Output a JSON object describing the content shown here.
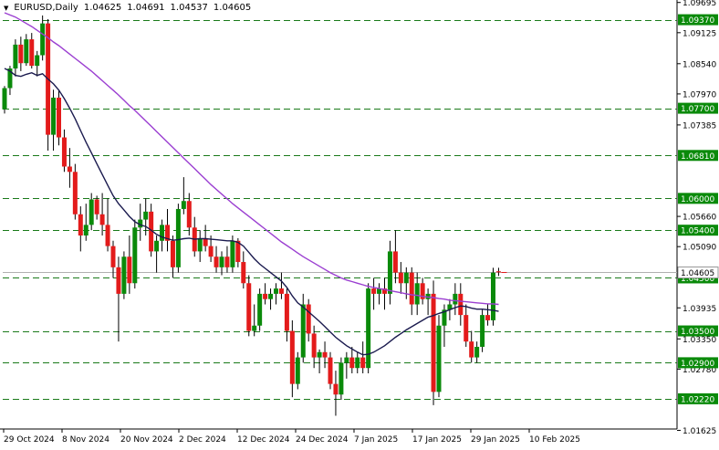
{
  "header": {
    "symbol": "EURUSD,Daily",
    "open": "1.04625",
    "high": "1.04691",
    "low": "1.04537",
    "close": "1.04605"
  },
  "colors": {
    "bull": "#0a8a0a",
    "bear": "#e31b1b",
    "wick": "#000000",
    "level_line": "#1a7a1a",
    "ma_fast": "#1a1a4e",
    "ma_slow": "#9b3fd1",
    "tag_bg": "#0a8a0a",
    "tag_text": "#ffffff",
    "axis": "#000000"
  },
  "chart_data": {
    "type": "candlestick",
    "ylim": [
      1.0165,
      1.0969
    ],
    "y_ticks": [
      "1.09695",
      "1.09370",
      "1.09125",
      "1.08540",
      "1.07970",
      "1.07700",
      "1.07385",
      "1.06810",
      "1.06000",
      "1.05660",
      "1.05400",
      "1.05090",
      "1.04605",
      "1.04500",
      "1.03935",
      "1.03500",
      "1.03350",
      "1.02900",
      "1.02780",
      "1.02220",
      "1.01625"
    ],
    "x_labels": [
      "29 Oct 2024",
      "8 Nov 2024",
      "20 Nov 2024",
      "2 Dec 2024",
      "12 Dec 2024",
      "24 Dec 2024",
      "7 Jan 2025",
      "17 Jan 2025",
      "29 Jan 2025",
      "10 Feb 2025"
    ],
    "levels": [
      {
        "value": 1.0937,
        "label": "1.09370"
      },
      {
        "value": 1.077,
        "label": "1.07700"
      },
      {
        "value": 1.0681,
        "label": "1.06810"
      },
      {
        "value": 1.06,
        "label": "1.06000"
      },
      {
        "value": 1.054,
        "label": "1.05400"
      },
      {
        "value": 1.045,
        "label": "1.04500"
      },
      {
        "value": 1.035,
        "label": "1.03500"
      },
      {
        "value": 1.029,
        "label": "1.02900"
      },
      {
        "value": 1.0222,
        "label": "1.02220"
      }
    ],
    "current_price": {
      "value": 1.04605,
      "label": "1.04605"
    },
    "candles": [
      [
        1.0768,
        1.0812,
        1.076,
        1.0808
      ],
      [
        1.0808,
        1.085,
        1.0795,
        1.0845
      ],
      [
        1.0845,
        1.09,
        1.083,
        1.089
      ],
      [
        1.089,
        1.0905,
        1.084,
        1.0855
      ],
      [
        1.0855,
        1.091,
        1.085,
        1.09
      ],
      [
        1.09,
        1.0912,
        1.0845,
        1.085
      ],
      [
        1.085,
        1.0878,
        1.083,
        1.087
      ],
      [
        1.087,
        1.0945,
        1.086,
        1.093
      ],
      [
        1.093,
        1.0938,
        1.069,
        1.072
      ],
      [
        1.072,
        1.0805,
        1.069,
        1.079
      ],
      [
        1.079,
        1.0805,
        1.07,
        1.0715
      ],
      [
        1.0715,
        1.073,
        1.065,
        1.066
      ],
      [
        1.066,
        1.0695,
        1.062,
        1.065
      ],
      [
        1.065,
        1.0665,
        1.056,
        1.057
      ],
      [
        1.057,
        1.0585,
        1.05,
        1.053
      ],
      [
        1.053,
        1.059,
        1.052,
        1.055
      ],
      [
        1.055,
        1.061,
        1.054,
        1.0598
      ],
      [
        1.0598,
        1.0605,
        1.056,
        1.057
      ],
      [
        1.057,
        1.061,
        1.053,
        1.055
      ],
      [
        1.055,
        1.06,
        1.05,
        1.051
      ],
      [
        1.051,
        1.052,
        1.045,
        1.047
      ],
      [
        1.047,
        1.049,
        1.033,
        1.042
      ],
      [
        1.042,
        1.05,
        1.041,
        1.049
      ],
      [
        1.049,
        1.053,
        1.042,
        1.044
      ],
      [
        1.044,
        1.056,
        1.043,
        1.0545
      ],
      [
        1.0545,
        1.059,
        1.052,
        1.056
      ],
      [
        1.056,
        1.06,
        1.053,
        1.0575
      ],
      [
        1.0575,
        1.059,
        1.049,
        1.05
      ],
      [
        1.05,
        1.053,
        1.046,
        1.052
      ],
      [
        1.052,
        1.056,
        1.05,
        1.055
      ],
      [
        1.055,
        1.058,
        1.05,
        1.052
      ],
      [
        1.052,
        1.053,
        1.045,
        1.047
      ],
      [
        1.047,
        1.059,
        1.046,
        1.058
      ],
      [
        1.058,
        1.064,
        1.057,
        1.0595
      ],
      [
        1.0595,
        1.061,
        1.053,
        1.0545
      ],
      [
        1.0545,
        1.0565,
        1.049,
        1.05
      ],
      [
        1.05,
        1.054,
        1.048,
        1.0525
      ],
      [
        1.0525,
        1.055,
        1.05,
        1.051
      ],
      [
        1.051,
        1.053,
        1.048,
        1.049
      ],
      [
        1.049,
        1.051,
        1.046,
        1.047
      ],
      [
        1.047,
        1.05,
        1.0455,
        1.049
      ],
      [
        1.049,
        1.051,
        1.046,
        1.047
      ],
      [
        1.047,
        1.053,
        1.046,
        1.052
      ],
      [
        1.052,
        1.0525,
        1.047,
        1.048
      ],
      [
        1.048,
        1.05,
        1.043,
        1.044
      ],
      [
        1.044,
        1.0455,
        1.034,
        1.035
      ],
      [
        1.035,
        1.04,
        1.034,
        1.036
      ],
      [
        1.036,
        1.043,
        1.035,
        1.042
      ],
      [
        1.042,
        1.044,
        1.04,
        1.041
      ],
      [
        1.041,
        1.043,
        1.039,
        1.042
      ],
      [
        1.042,
        1.044,
        1.04,
        1.043
      ],
      [
        1.043,
        1.046,
        1.041,
        1.042
      ],
      [
        1.042,
        1.043,
        1.033,
        1.035
      ],
      [
        1.035,
        1.037,
        1.0225,
        1.025
      ],
      [
        1.025,
        1.031,
        1.024,
        1.03
      ],
      [
        1.03,
        1.042,
        1.029,
        1.04
      ],
      [
        1.04,
        1.041,
        1.033,
        1.0345
      ],
      [
        1.0345,
        1.036,
        1.028,
        1.03
      ],
      [
        1.03,
        1.0315,
        1.027,
        1.031
      ],
      [
        1.031,
        1.033,
        1.028,
        1.03
      ],
      [
        1.03,
        1.031,
        1.024,
        1.025
      ],
      [
        1.025,
        1.0275,
        1.019,
        1.023
      ],
      [
        1.023,
        1.03,
        1.022,
        1.029
      ],
      [
        1.029,
        1.031,
        1.026,
        1.03
      ],
      [
        1.03,
        1.032,
        1.027,
        1.028
      ],
      [
        1.028,
        1.031,
        1.027,
        1.03
      ],
      [
        1.03,
        1.033,
        1.027,
        1.028
      ],
      [
        1.028,
        1.044,
        1.027,
        1.043
      ],
      [
        1.043,
        1.045,
        1.039,
        1.042
      ],
      [
        1.042,
        1.044,
        1.04,
        1.043
      ],
      [
        1.043,
        1.045,
        1.039,
        1.042
      ],
      [
        1.042,
        1.052,
        1.04,
        1.05
      ],
      [
        1.05,
        1.054,
        1.044,
        1.046
      ],
      [
        1.046,
        1.048,
        1.042,
        1.044
      ],
      [
        1.044,
        1.047,
        1.041,
        1.046
      ],
      [
        1.046,
        1.047,
        1.038,
        1.04
      ],
      [
        1.04,
        1.046,
        1.038,
        1.044
      ],
      [
        1.044,
        1.045,
        1.04,
        1.041
      ],
      [
        1.041,
        1.043,
        1.038,
        1.042
      ],
      [
        1.042,
        1.0445,
        1.021,
        1.0235
      ],
      [
        1.0235,
        1.038,
        1.0225,
        1.036
      ],
      [
        1.036,
        1.04,
        1.032,
        1.039
      ],
      [
        1.039,
        1.041,
        1.037,
        1.04
      ],
      [
        1.04,
        1.044,
        1.038,
        1.042
      ],
      [
        1.042,
        1.044,
        1.036,
        1.038
      ],
      [
        1.038,
        1.04,
        1.032,
        1.033
      ],
      [
        1.033,
        1.035,
        1.029,
        1.03
      ],
      [
        1.03,
        1.033,
        1.029,
        1.032
      ],
      [
        1.032,
        1.039,
        1.031,
        1.038
      ],
      [
        1.038,
        1.04,
        1.036,
        1.037
      ],
      [
        1.037,
        1.0469,
        1.036,
        1.046
      ],
      [
        1.04625,
        1.04691,
        1.04537,
        1.04605
      ]
    ],
    "series": [
      {
        "values": [
          1.0845,
          1.084,
          1.0832,
          1.083,
          1.0834,
          1.0837,
          1.0832,
          1.0835,
          1.0825,
          1.0816,
          1.0804,
          1.0788,
          1.077,
          1.075,
          1.0728,
          1.0706,
          1.0686,
          1.0665,
          1.0645,
          1.0625,
          1.0605,
          1.059,
          1.0578,
          1.0566,
          1.0556,
          1.055,
          1.0547,
          1.054,
          1.0532,
          1.0527,
          1.0524,
          1.0521,
          1.0522,
          1.0524,
          1.0525,
          1.0523,
          1.0524,
          1.0524,
          1.0523,
          1.0522,
          1.0521,
          1.052,
          1.052,
          1.0517,
          1.051,
          1.0498,
          1.0486,
          1.0476,
          1.0468,
          1.046,
          1.0452,
          1.0444,
          1.0432,
          1.0416,
          1.0403,
          1.0395,
          1.0386,
          1.0377,
          1.0368,
          1.0358,
          1.0348,
          1.0338,
          1.033,
          1.0322,
          1.0316,
          1.031,
          1.0305,
          1.0306,
          1.031,
          1.0316,
          1.0322,
          1.033,
          1.0338,
          1.0345,
          1.0352,
          1.0358,
          1.0364,
          1.037,
          1.0376,
          1.0379,
          1.0383,
          1.0386,
          1.039,
          1.0394,
          1.0397,
          1.0396,
          1.0393,
          1.0391,
          1.0391,
          1.039,
          1.0389,
          1.0387
        ]
      },
      {
        "values": [
          1.095,
          1.0946,
          1.0942,
          1.0936,
          1.093,
          1.0924,
          1.0917,
          1.091,
          1.0903,
          1.0895,
          1.0888,
          1.088,
          1.0872,
          1.0864,
          1.0856,
          1.0848,
          1.084,
          1.0831,
          1.0822,
          1.0813,
          1.0804,
          1.0795,
          1.0785,
          1.0775,
          1.0766,
          1.0756,
          1.0746,
          1.0736,
          1.0726,
          1.0716,
          1.0706,
          1.0696,
          1.0686,
          1.0676,
          1.0666,
          1.0656,
          1.0646,
          1.0636,
          1.0626,
          1.0617,
          1.0608,
          1.0599,
          1.059,
          1.0582,
          1.0574,
          1.0566,
          1.0558,
          1.055,
          1.0542,
          1.0534,
          1.0526,
          1.0518,
          1.0511,
          1.0504,
          1.0497,
          1.049,
          1.0484,
          1.0478,
          1.0472,
          1.0466,
          1.046,
          1.0455,
          1.045,
          1.0446,
          1.0443,
          1.044,
          1.0437,
          1.0434,
          1.0432,
          1.043,
          1.0428,
          1.0426,
          1.0424,
          1.0422,
          1.042,
          1.0418,
          1.0417,
          1.0415,
          1.0414,
          1.0413,
          1.0411,
          1.041,
          1.0408,
          1.0407,
          1.0406,
          1.0405,
          1.0404,
          1.0403,
          1.0402,
          1.0401,
          1.0401,
          1.04
        ]
      }
    ]
  }
}
